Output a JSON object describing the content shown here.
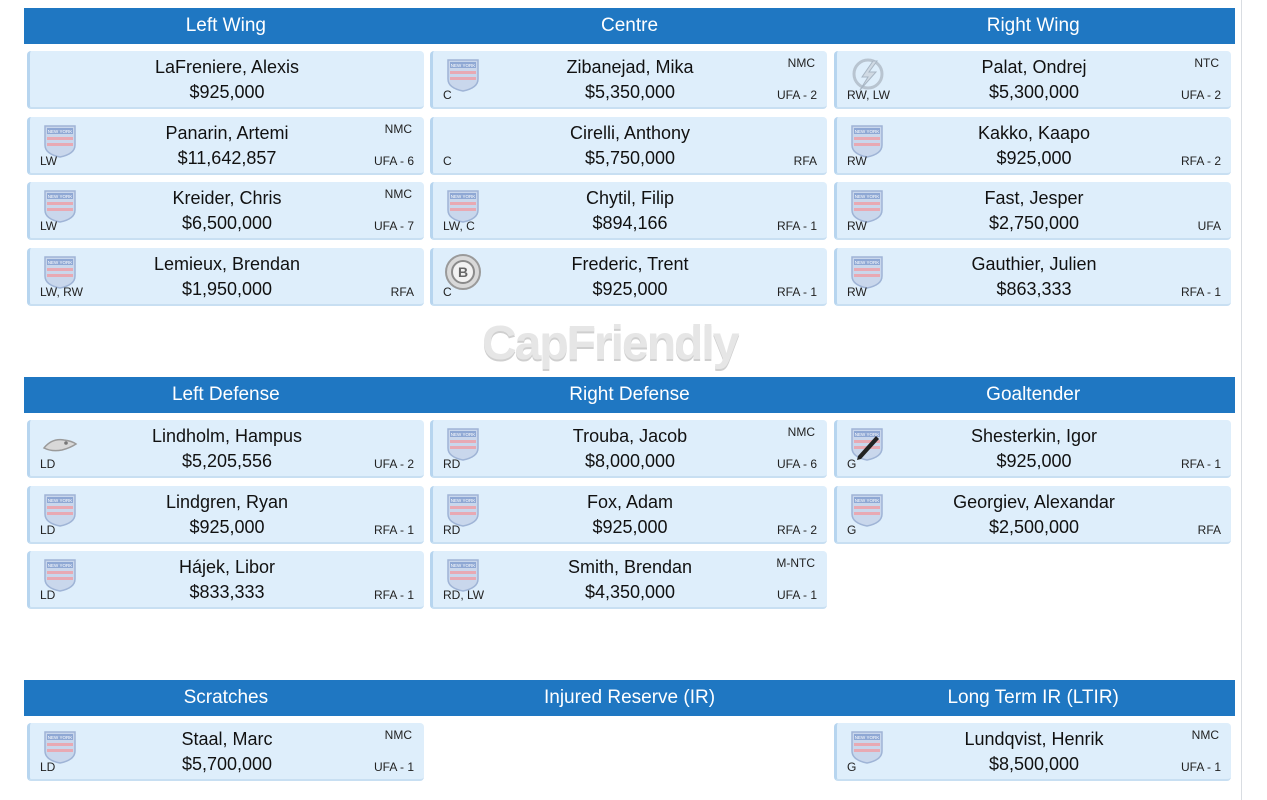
{
  "watermark": "CapFriendly",
  "sections": [
    {
      "headers": [
        "Left Wing",
        "Centre",
        "Right Wing"
      ],
      "columns": [
        [
          {
            "name": "LaFreniere, Alexis",
            "cap": "$925,000",
            "pos": "",
            "clause": "",
            "status": "",
            "logo": "none"
          },
          {
            "name": "Panarin, Artemi",
            "cap": "$11,642,857",
            "pos": "LW",
            "clause": "NMC",
            "status": "UFA - 6",
            "logo": "rangers-logo"
          },
          {
            "name": "Kreider, Chris",
            "cap": "$6,500,000",
            "pos": "LW",
            "clause": "NMC",
            "status": "UFA - 7",
            "logo": "rangers-logo"
          },
          {
            "name": "Lemieux, Brendan",
            "cap": "$1,950,000",
            "pos": "LW, RW",
            "clause": "",
            "status": "RFA",
            "logo": "rangers-logo"
          }
        ],
        [
          {
            "name": "Zibanejad, Mika",
            "cap": "$5,350,000",
            "pos": "C",
            "clause": "NMC",
            "status": "UFA - 2",
            "logo": "rangers-logo"
          },
          {
            "name": "Cirelli, Anthony",
            "cap": "$5,750,000",
            "pos": "C",
            "clause": "",
            "status": "RFA",
            "logo": "none"
          },
          {
            "name": "Chytil, Filip",
            "cap": "$894,166",
            "pos": "LW, C",
            "clause": "",
            "status": "RFA - 1",
            "logo": "rangers-logo"
          },
          {
            "name": "Frederic, Trent",
            "cap": "$925,000",
            "pos": "C",
            "clause": "",
            "status": "RFA - 1",
            "logo": "bruins-logo"
          }
        ],
        [
          {
            "name": "Palat, Ondrej",
            "cap": "$5,300,000",
            "pos": "RW, LW",
            "clause": "NTC",
            "status": "UFA - 2",
            "logo": "lightning-logo"
          },
          {
            "name": "Kakko, Kaapo",
            "cap": "$925,000",
            "pos": "RW",
            "clause": "",
            "status": "RFA - 2",
            "logo": "rangers-logo"
          },
          {
            "name": "Fast, Jesper",
            "cap": "$2,750,000",
            "pos": "RW",
            "clause": "",
            "status": "UFA",
            "logo": "rangers-logo"
          },
          {
            "name": "Gauthier, Julien",
            "cap": "$863,333",
            "pos": "RW",
            "clause": "",
            "status": "RFA - 1",
            "logo": "rangers-logo"
          }
        ]
      ]
    },
    {
      "headers": [
        "Left Defense",
        "Right Defense",
        "Goaltender"
      ],
      "columns": [
        [
          {
            "name": "Lindholm, Hampus",
            "cap": "$5,205,556",
            "pos": "LD",
            "clause": "",
            "status": "UFA - 2",
            "logo": "ducks-logo"
          },
          {
            "name": "Lindgren, Ryan",
            "cap": "$925,000",
            "pos": "LD",
            "clause": "",
            "status": "RFA - 1",
            "logo": "rangers-logo"
          },
          {
            "name": "Hájek, Libor",
            "cap": "$833,333",
            "pos": "LD",
            "clause": "",
            "status": "RFA - 1",
            "logo": "rangers-logo"
          }
        ],
        [
          {
            "name": "Trouba, Jacob",
            "cap": "$8,000,000",
            "pos": "RD",
            "clause": "NMC",
            "status": "UFA - 6",
            "logo": "rangers-logo"
          },
          {
            "name": "Fox, Adam",
            "cap": "$925,000",
            "pos": "RD",
            "clause": "",
            "status": "RFA - 2",
            "logo": "rangers-logo"
          },
          {
            "name": "Smith, Brendan",
            "cap": "$4,350,000",
            "pos": "RD, LW",
            "clause": "M-NTC",
            "status": "UFA - 1",
            "logo": "rangers-logo"
          }
        ],
        [
          {
            "name": "Shesterkin, Igor",
            "cap": "$925,000",
            "pos": "G",
            "clause": "",
            "status": "RFA - 1",
            "logo": "rangers-logo-pencil"
          },
          {
            "name": "Georgiev, Alexandar",
            "cap": "$2,500,000",
            "pos": "G",
            "clause": "",
            "status": "RFA",
            "logo": "rangers-logo"
          }
        ]
      ]
    },
    {
      "headers": [
        "Scratches",
        "Injured Reserve (IR)",
        "Long Term IR (LTIR)"
      ],
      "columns": [
        [
          {
            "name": "Staal, Marc",
            "cap": "$5,700,000",
            "pos": "LD",
            "clause": "NMC",
            "status": "UFA - 1",
            "logo": "rangers-logo"
          }
        ],
        [],
        [
          {
            "name": "Lundqvist, Henrik",
            "cap": "$8,500,000",
            "pos": "G",
            "clause": "NMC",
            "status": "UFA - 1",
            "logo": "rangers-logo"
          }
        ]
      ]
    }
  ]
}
